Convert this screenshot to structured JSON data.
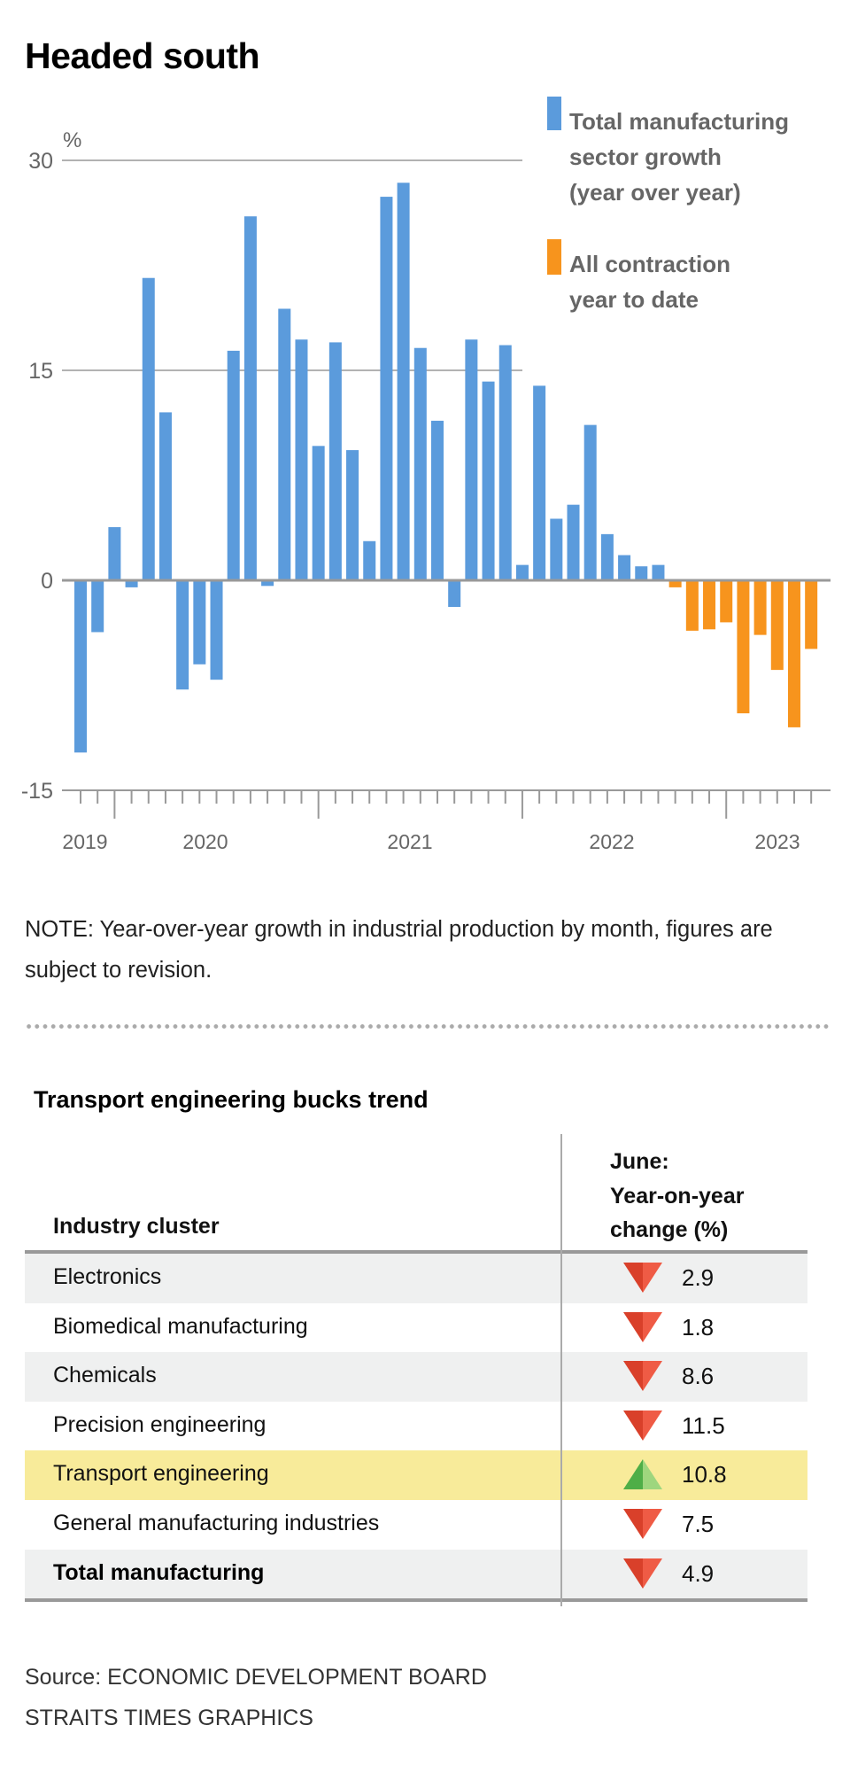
{
  "title": "Headed south",
  "chart_data": {
    "type": "bar",
    "title": "Headed south",
    "ylabel": "%",
    "ylim": [
      -15,
      30
    ],
    "yticks": [
      30,
      15,
      0,
      -15
    ],
    "grid": true,
    "x_year_labels": [
      "2019",
      "2020",
      "2021",
      "2022",
      "2023"
    ],
    "x_period": "Nov 2019 – Jun 2023 (monthly)",
    "legend_placement": "top-right",
    "series": [
      {
        "name": "Total manufacturing sector growth (year over year)",
        "color": "#5b9bdc",
        "values": [
          -12.3,
          -3.7,
          3.8,
          -0.5,
          21.6,
          12.0,
          -7.8,
          -6.0,
          -7.1,
          16.4,
          26.0,
          -0.4,
          19.4,
          17.2,
          9.6,
          17.0,
          9.3,
          2.8,
          27.4,
          28.4,
          16.6,
          11.4,
          -1.9,
          17.2,
          14.2,
          16.8,
          1.1,
          13.9,
          4.4,
          5.4,
          11.1,
          3.3,
          1.8,
          1.0,
          1.1
        ]
      },
      {
        "name": "All contraction year to date",
        "color": "#f7941d",
        "values": [
          -0.5,
          -3.6,
          -3.5,
          -3.0,
          -9.5,
          -3.9,
          -6.4,
          -10.5,
          -4.9
        ]
      }
    ]
  },
  "legend": [
    {
      "lines": [
        "Total manufacturing",
        "sector growth",
        "(year over year)"
      ],
      "color": "#5b9bdc"
    },
    {
      "lines": [
        "All contraction",
        "year to date"
      ],
      "color": "#f7941d"
    }
  ],
  "note": "NOTE: Year-over-year growth in industrial production by month, figures are subject to revision.",
  "table": {
    "title": "Transport engineering bucks trend",
    "header_cluster": "Industry cluster",
    "header_change": [
      "June:",
      "Year-on-year",
      "change (%)"
    ],
    "rows": [
      {
        "name": "Electronics",
        "direction": "down",
        "value": "2.9",
        "bg": "#eff0f0"
      },
      {
        "name": "Biomedical manufacturing",
        "direction": "down",
        "value": "1.8",
        "bg": "#ffffff"
      },
      {
        "name": "Chemicals",
        "direction": "down",
        "value": "8.6",
        "bg": "#eff0f0"
      },
      {
        "name": "Precision engineering",
        "direction": "down",
        "value": "11.5",
        "bg": "#ffffff"
      },
      {
        "name": "Transport engineering",
        "direction": "up",
        "value": "10.8",
        "bg": "#f8eb9a"
      },
      {
        "name": "General manufacturing industries",
        "direction": "down",
        "value": "7.5",
        "bg": "#ffffff"
      },
      {
        "name": "Total manufacturing",
        "direction": "down",
        "value": "4.9",
        "bg": "#eff0f0",
        "bold": true
      }
    ]
  },
  "source": [
    "Source: ECONOMIC DEVELOPMENT BOARD",
    "STRAITS TIMES GRAPHICS"
  ]
}
